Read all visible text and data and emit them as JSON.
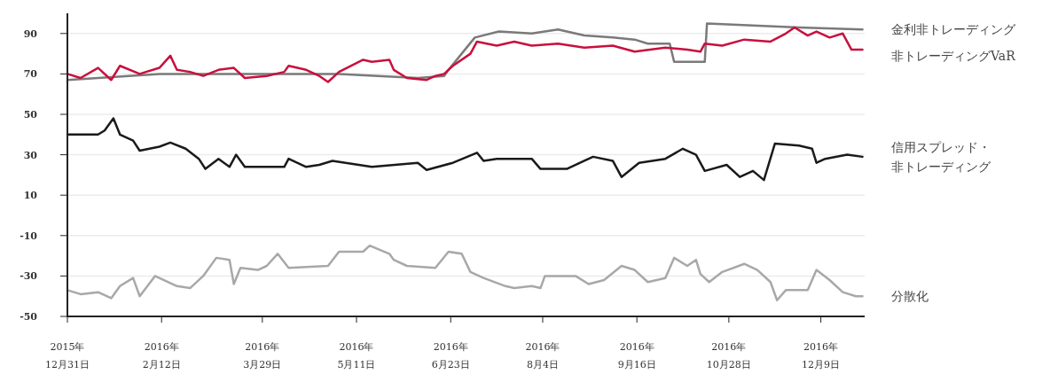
{
  "chart_data": {
    "type": "line",
    "xlim": [
      "2015-12-31",
      "2016-12-29"
    ],
    "ylim": [
      -50,
      100
    ],
    "yticks": [
      -50,
      -30,
      -10,
      10,
      30,
      50,
      70,
      90
    ],
    "xticks": [
      {
        "value": "2015-12-31",
        "label": "2015年12月31日"
      },
      {
        "value": "2016-02-12",
        "label": "2016年2月12日"
      },
      {
        "value": "2016-03-29",
        "label": "2016年3月29日"
      },
      {
        "value": "2016-05-11",
        "label": "2016年5月11日"
      },
      {
        "value": "2016-06-23",
        "label": "2016年6月23日"
      },
      {
        "value": "2016-08-04",
        "label": "2016年8月4日"
      },
      {
        "value": "2016-09-16",
        "label": "2016年9月16日"
      },
      {
        "value": "2016-10-28",
        "label": "2016年10月28日"
      },
      {
        "value": "2016-12-09",
        "label": "2016年12月9日"
      }
    ],
    "grid": "y",
    "legend": false,
    "line_style": "solid",
    "series": [
      {
        "name": "金利非トレーディング",
        "color": "#7a7a7a",
        "x": [
          "2015-12-31",
          "2016-02-11",
          "2016-05-03",
          "2016-06-08",
          "2016-06-20",
          "2016-06-22",
          "2016-06-28",
          "2016-07-04",
          "2016-07-15",
          "2016-07-30",
          "2016-08-11",
          "2016-08-23",
          "2016-09-05",
          "2016-09-15",
          "2016-09-21",
          "2016-10-01",
          "2016-10-03",
          "2016-10-17",
          "2016-10-18",
          "2016-11-08",
          "2016-11-29",
          "2016-12-28"
        ],
        "values": [
          67,
          70,
          70,
          68,
          69,
          72,
          80,
          88,
          91,
          90,
          92,
          89,
          88,
          87,
          85,
          85,
          76,
          76,
          95,
          94,
          93,
          92
        ]
      },
      {
        "name": "非トレーディングVaR",
        "color": "#c8103e",
        "x": [
          "2015-12-31",
          "2016-01-06",
          "2016-01-14",
          "2016-01-20",
          "2016-01-24",
          "2016-02-02",
          "2016-02-11",
          "2016-02-16",
          "2016-02-19",
          "2016-02-25",
          "2016-03-02",
          "2016-03-09",
          "2016-03-16",
          "2016-03-21",
          "2016-03-31",
          "2016-04-08",
          "2016-04-10",
          "2016-04-18",
          "2016-04-24",
          "2016-04-28",
          "2016-05-03",
          "2016-05-14",
          "2016-05-18",
          "2016-05-26",
          "2016-05-28",
          "2016-06-03",
          "2016-06-12",
          "2016-06-16",
          "2016-06-20",
          "2016-06-24",
          "2016-07-02",
          "2016-07-05",
          "2016-07-14",
          "2016-07-22",
          "2016-07-30",
          "2016-08-11",
          "2016-08-23",
          "2016-09-05",
          "2016-09-15",
          "2016-09-29",
          "2016-10-09",
          "2016-10-15",
          "2016-10-17",
          "2016-10-25",
          "2016-11-04",
          "2016-11-16",
          "2016-11-23",
          "2016-11-27",
          "2016-12-03",
          "2016-12-07",
          "2016-12-13",
          "2016-12-19",
          "2016-12-23",
          "2016-12-28"
        ],
        "values": [
          70,
          68,
          73,
          67,
          74,
          70,
          73,
          79,
          72,
          71,
          69,
          72,
          73,
          68,
          69,
          71,
          74,
          72,
          69,
          66,
          71,
          77,
          76,
          77,
          72,
          68,
          67,
          69,
          70,
          74,
          80,
          86,
          84,
          86,
          84,
          85,
          83,
          84,
          81,
          83,
          82,
          81,
          85,
          84,
          87,
          86,
          90,
          93,
          89,
          91,
          88,
          90,
          82,
          82
        ]
      },
      {
        "name": "信用スプレッド・非トレーディング",
        "color": "#1a1a1a",
        "x": [
          "2015-12-31",
          "2016-01-14",
          "2016-01-17",
          "2016-01-21",
          "2016-01-24",
          "2016-01-30",
          "2016-02-02",
          "2016-02-11",
          "2016-02-16",
          "2016-02-23",
          "2016-02-29",
          "2016-03-03",
          "2016-03-09",
          "2016-03-14",
          "2016-03-17",
          "2016-03-21",
          "2016-04-08",
          "2016-04-10",
          "2016-04-18",
          "2016-04-24",
          "2016-04-30",
          "2016-05-18",
          "2016-06-08",
          "2016-06-12",
          "2016-06-24",
          "2016-07-05",
          "2016-07-08",
          "2016-07-14",
          "2016-07-30",
          "2016-08-03",
          "2016-08-15",
          "2016-08-23",
          "2016-08-27",
          "2016-09-05",
          "2016-09-09",
          "2016-09-17",
          "2016-09-29",
          "2016-10-07",
          "2016-10-13",
          "2016-10-17",
          "2016-10-27",
          "2016-11-02",
          "2016-11-08",
          "2016-11-13",
          "2016-11-18",
          "2016-11-29",
          "2016-12-05",
          "2016-12-07",
          "2016-12-11",
          "2016-12-21",
          "2016-12-28"
        ],
        "values": [
          40,
          40,
          42,
          48,
          40,
          37,
          32,
          34,
          36,
          33,
          28,
          23,
          28,
          24,
          30,
          24,
          24,
          28,
          24,
          25,
          27,
          24,
          26,
          22.5,
          26,
          31,
          27,
          28,
          28,
          23,
          23,
          27,
          29,
          27,
          19,
          26,
          28,
          33,
          30,
          22,
          25,
          19,
          22,
          17.5,
          35.5,
          34.5,
          33,
          26,
          28,
          30,
          29
        ]
      },
      {
        "name": "分散化",
        "color": "#a8a8a8",
        "x": [
          "2015-12-31",
          "2016-01-06",
          "2016-01-14",
          "2016-01-20",
          "2016-01-24",
          "2016-01-30",
          "2016-02-02",
          "2016-02-09",
          "2016-02-19",
          "2016-02-25",
          "2016-03-02",
          "2016-03-08",
          "2016-03-14",
          "2016-03-16",
          "2016-03-19",
          "2016-03-27",
          "2016-03-31",
          "2016-04-05",
          "2016-04-10",
          "2016-04-28",
          "2016-05-03",
          "2016-05-14",
          "2016-05-17",
          "2016-05-26",
          "2016-05-28",
          "2016-06-03",
          "2016-06-16",
          "2016-06-22",
          "2016-06-28",
          "2016-07-02",
          "2016-07-08",
          "2016-07-18",
          "2016-07-22",
          "2016-07-30",
          "2016-08-03",
          "2016-08-05",
          "2016-08-19",
          "2016-08-25",
          "2016-09-01",
          "2016-09-09",
          "2016-09-15",
          "2016-09-21",
          "2016-09-29",
          "2016-10-03",
          "2016-10-09",
          "2016-10-13",
          "2016-10-15",
          "2016-10-19",
          "2016-10-25",
          "2016-11-04",
          "2016-11-10",
          "2016-11-16",
          "2016-11-19",
          "2016-11-23",
          "2016-12-03",
          "2016-12-07",
          "2016-12-13",
          "2016-12-19",
          "2016-12-25",
          "2016-12-28"
        ],
        "values": [
          -37,
          -39,
          -38,
          -41,
          -35,
          -31,
          -40,
          -30,
          -35,
          -36,
          -30,
          -21,
          -22,
          -34,
          -26,
          -27,
          -25,
          -19,
          -26,
          -25,
          -18,
          -18,
          -15,
          -19,
          -22,
          -25,
          -26,
          -18,
          -19,
          -28,
          -31,
          -35,
          -36,
          -35,
          -36,
          -30,
          -30,
          -34,
          -32,
          -25,
          -27,
          -33,
          -31,
          -21,
          -25,
          -22,
          -29,
          -33,
          -28,
          -24,
          -27,
          -33,
          -42,
          -37,
          -37,
          -27,
          -32,
          -38,
          -40,
          -40
        ]
      }
    ]
  }
}
